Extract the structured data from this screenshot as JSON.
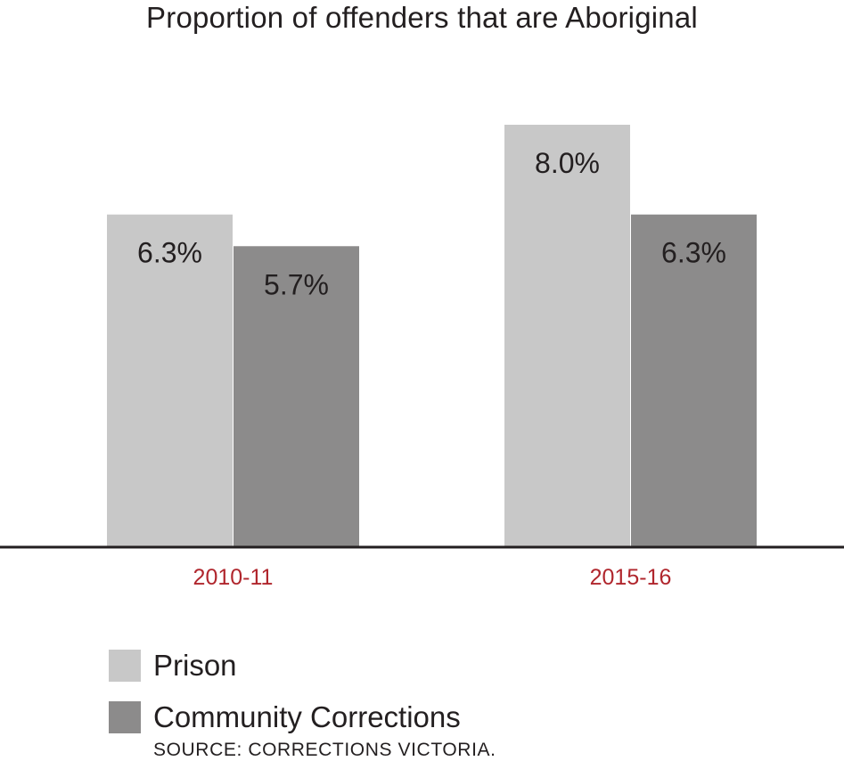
{
  "chart_data": {
    "type": "bar",
    "title": "Proportion of offenders that are Aboriginal",
    "categories": [
      "2010-11",
      "2015-16"
    ],
    "series": [
      {
        "name": "Prison",
        "values": [
          6.3,
          8.0
        ],
        "labels": [
          "6.3%",
          "8.0%"
        ],
        "color": "#c8c8c8"
      },
      {
        "name": "Community Corrections",
        "values": [
          5.7,
          6.3
        ],
        "labels": [
          "5.7%",
          "6.3%"
        ],
        "color": "#8c8b8b"
      }
    ],
    "category_label_color": "#b0262d",
    "ylim": [
      0,
      8.0
    ],
    "grid": false,
    "legend": "bottom-left",
    "source": "SOURCE: CORRECTIONS VICTORIA."
  }
}
